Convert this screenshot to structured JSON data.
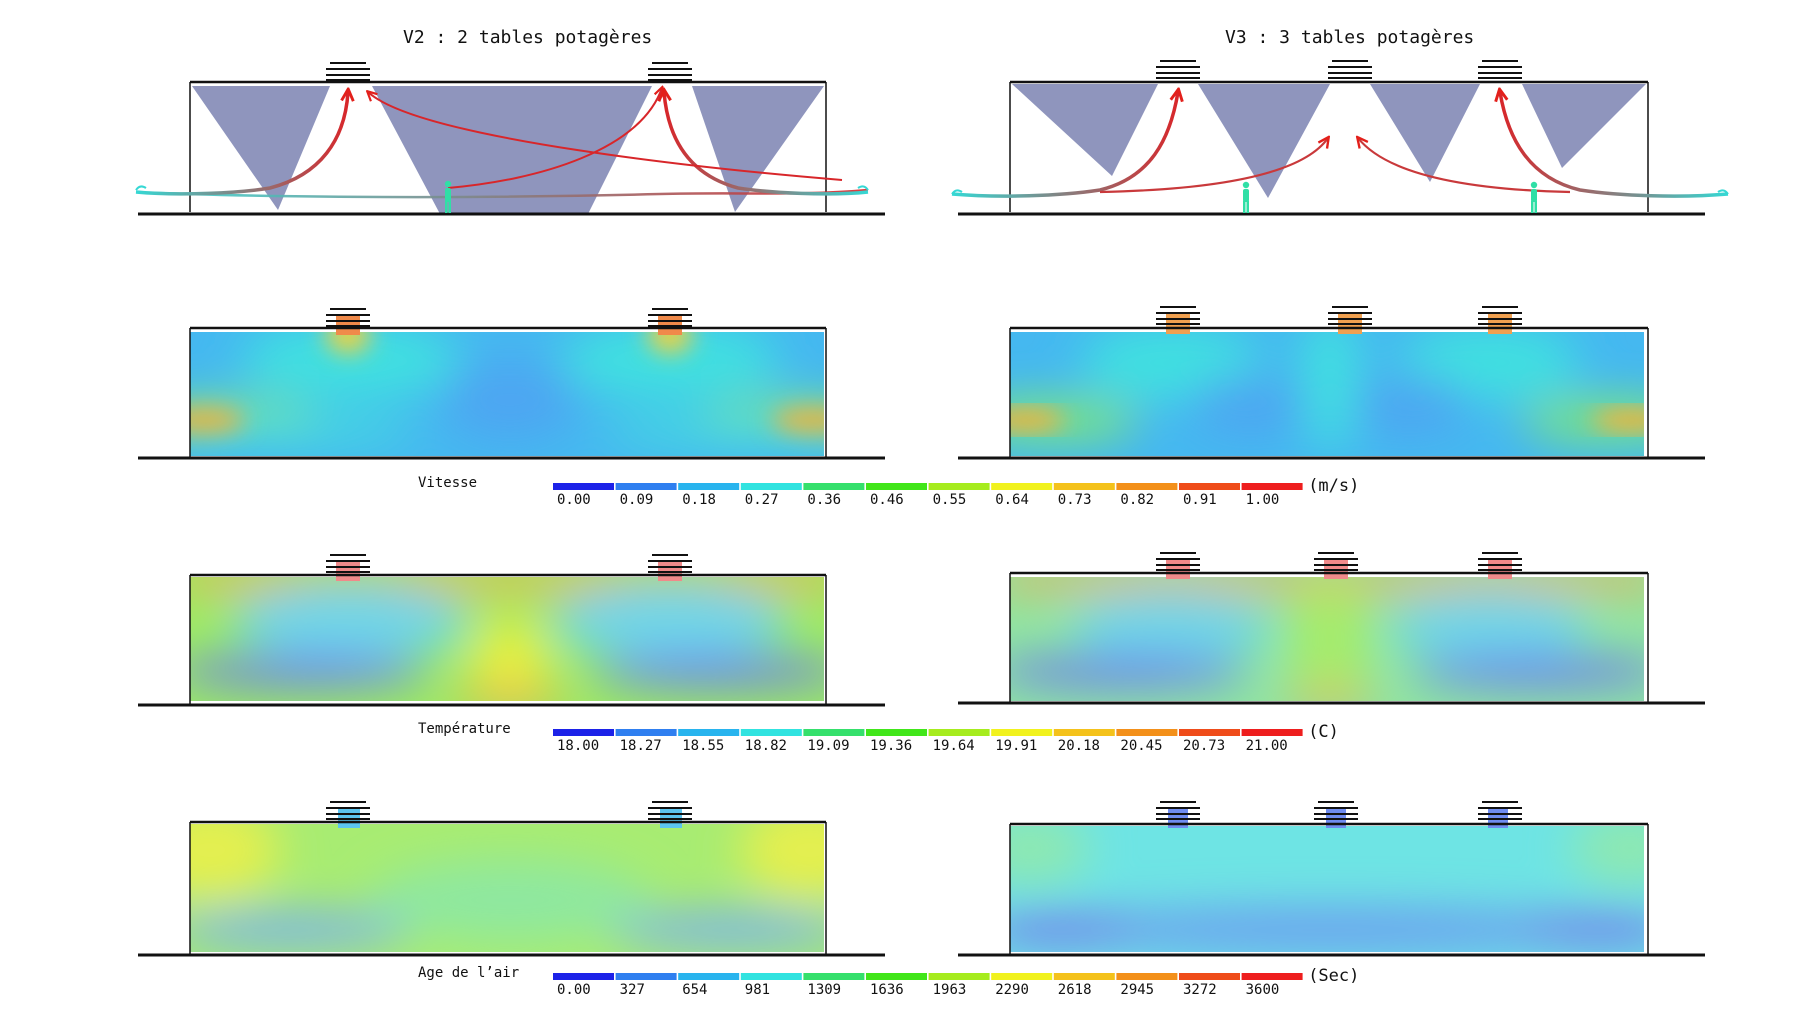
{
  "titles": {
    "left": "V2 : 2 tables potagères",
    "right": "V3 : 3 tables potagères"
  },
  "ramp_colors": [
    "#1c22e8",
    "#2f7ff0",
    "#28b4ee",
    "#31e3e0",
    "#35e06c",
    "#41e61a",
    "#a6ec1e",
    "#f1f21e",
    "#f4c21b",
    "#f3901a",
    "#ef4c1a",
    "#ee1e1e"
  ],
  "colors": {
    "shade": "#8f95bd",
    "arrow_red": "#e3201b",
    "airflow_cyan": "#35d8d4",
    "person": "#30dfa6"
  },
  "scales": [
    {
      "name": "Vitesse",
      "unit": "(m/s)",
      "ticks": [
        "0.00",
        "0.09",
        "0.18",
        "0.27",
        "0.36",
        "0.46",
        "0.55",
        "0.64",
        "0.73",
        "0.82",
        "0.91",
        "1.00"
      ]
    },
    {
      "name": "Température",
      "unit": "(C)",
      "ticks": [
        "18.00",
        "18.27",
        "18.55",
        "18.82",
        "19.09",
        "19.36",
        "19.64",
        "19.91",
        "20.18",
        "20.45",
        "20.73",
        "21.00"
      ]
    },
    {
      "name": "Age de l’air",
      "unit": "(Sec)",
      "ticks": [
        "0.00",
        "327",
        "654",
        "981",
        "1309",
        "1636",
        "1963",
        "2290",
        "2618",
        "2945",
        "3272",
        "3600"
      ]
    }
  ]
}
